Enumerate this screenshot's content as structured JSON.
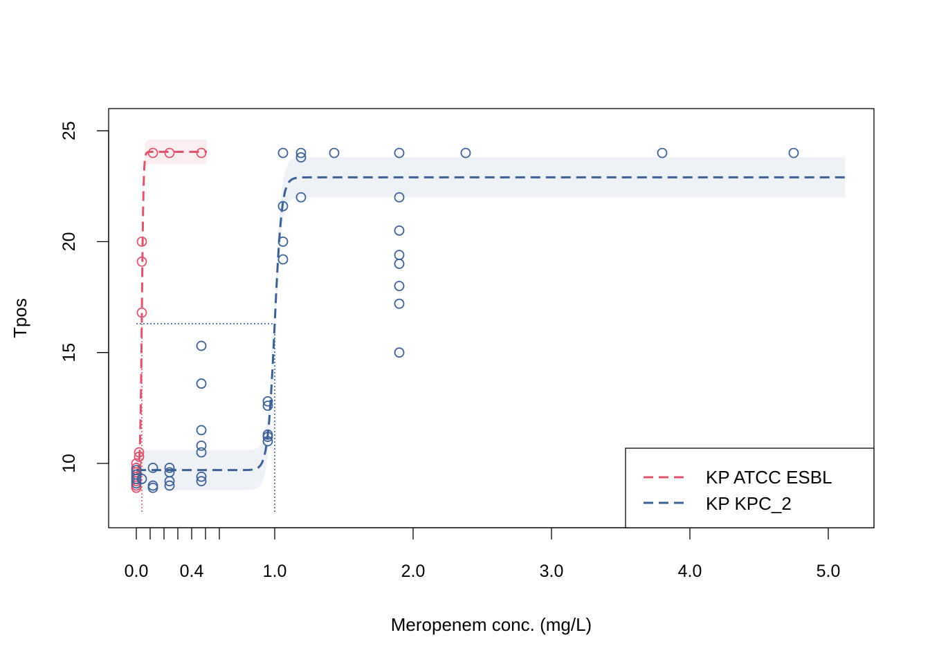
{
  "chart_data": {
    "type": "scatter",
    "title": "",
    "xlabel": "Meropenem conc. (mg/L)",
    "ylabel": "Tpos",
    "xlim": [
      -0.2,
      5.33
    ],
    "ylim": [
      7.1,
      26.0
    ],
    "x_ticks": [
      0.0,
      0.1,
      0.2,
      0.3,
      0.4,
      0.5,
      0.6,
      1.0,
      2.0,
      3.0,
      4.0,
      5.0
    ],
    "x_tick_labels": [
      {
        "value": 0.0,
        "label": "0.0"
      },
      {
        "value": 0.4,
        "label": "0.4"
      },
      {
        "value": 1.0,
        "label": "1.0"
      },
      {
        "value": 2.0,
        "label": "2.0"
      },
      {
        "value": 3.0,
        "label": "3.0"
      },
      {
        "value": 4.0,
        "label": "4.0"
      },
      {
        "value": 5.0,
        "label": "5.0"
      }
    ],
    "y_ticks": [
      {
        "value": 10,
        "label": "10"
      },
      {
        "value": 15,
        "label": "15"
      },
      {
        "value": 20,
        "label": "20"
      },
      {
        "value": 25,
        "label": "25"
      }
    ],
    "legend": {
      "position": "bottom-right",
      "entries": [
        "KP ATCC ESBL",
        "KP KPC_2"
      ]
    },
    "series": [
      {
        "name": "KP ATCC ESBL",
        "color": "#DF536B",
        "band_color": "#FBEEF1",
        "fit": {
          "lower": 9.5,
          "upper": 24.05,
          "midpoint": 0.04,
          "width": 0.006,
          "x_range": [
            0.0,
            0.51
          ],
          "band_halfwidth": 0.55
        },
        "threshold": {
          "x": 0.04,
          "y": 16.3
        },
        "points": [
          {
            "x": 0.0,
            "y": 9.0
          },
          {
            "x": 0.0,
            "y": 9.2
          },
          {
            "x": 0.0,
            "y": 9.4
          },
          {
            "x": 0.0,
            "y": 9.6
          },
          {
            "x": 0.0,
            "y": 9.8
          },
          {
            "x": 0.0,
            "y": 10.0
          },
          {
            "x": 0.0,
            "y": 8.9
          },
          {
            "x": 0.02,
            "y": 10.3
          },
          {
            "x": 0.02,
            "y": 10.5
          },
          {
            "x": 0.04,
            "y": 20.0
          },
          {
            "x": 0.04,
            "y": 19.1
          },
          {
            "x": 0.04,
            "y": 16.8
          },
          {
            "x": 0.12,
            "y": 24.0
          },
          {
            "x": 0.24,
            "y": 24.0
          },
          {
            "x": 0.47,
            "y": 24.0
          }
        ]
      },
      {
        "name": "KP KPC_2",
        "color": "#3A6096",
        "band_color": "#EEF2F7",
        "fit": {
          "lower": 9.7,
          "upper": 22.9,
          "midpoint": 1.0,
          "width": 0.025,
          "x_range": [
            0.0,
            5.12
          ],
          "band_halfwidth": 0.9
        },
        "threshold": {
          "x": 1.0,
          "y": 16.3
        },
        "points": [
          {
            "x": 0.0,
            "y": 9.3
          },
          {
            "x": 0.0,
            "y": 9.5
          },
          {
            "x": 0.0,
            "y": 9.7
          },
          {
            "x": 0.0,
            "y": 9.1
          },
          {
            "x": 0.04,
            "y": 9.3
          },
          {
            "x": 0.12,
            "y": 9.8
          },
          {
            "x": 0.12,
            "y": 9.0
          },
          {
            "x": 0.12,
            "y": 8.9
          },
          {
            "x": 0.24,
            "y": 9.8
          },
          {
            "x": 0.24,
            "y": 9.6
          },
          {
            "x": 0.24,
            "y": 9.2
          },
          {
            "x": 0.24,
            "y": 9.0
          },
          {
            "x": 0.47,
            "y": 15.3
          },
          {
            "x": 0.47,
            "y": 13.6
          },
          {
            "x": 0.47,
            "y": 11.5
          },
          {
            "x": 0.47,
            "y": 10.8
          },
          {
            "x": 0.47,
            "y": 10.5
          },
          {
            "x": 0.47,
            "y": 9.4
          },
          {
            "x": 0.47,
            "y": 9.2
          },
          {
            "x": 0.95,
            "y": 12.8
          },
          {
            "x": 0.95,
            "y": 12.6
          },
          {
            "x": 0.95,
            "y": 11.3
          },
          {
            "x": 0.95,
            "y": 11.2
          },
          {
            "x": 0.95,
            "y": 11.0
          },
          {
            "x": 1.06,
            "y": 24.0
          },
          {
            "x": 1.06,
            "y": 21.6
          },
          {
            "x": 1.06,
            "y": 20.0
          },
          {
            "x": 1.06,
            "y": 19.2
          },
          {
            "x": 1.19,
            "y": 24.0
          },
          {
            "x": 1.19,
            "y": 23.8
          },
          {
            "x": 1.19,
            "y": 22.0
          },
          {
            "x": 1.43,
            "y": 24.0
          },
          {
            "x": 1.9,
            "y": 24.0
          },
          {
            "x": 1.9,
            "y": 22.0
          },
          {
            "x": 1.9,
            "y": 20.5
          },
          {
            "x": 1.9,
            "y": 19.4
          },
          {
            "x": 1.9,
            "y": 19.0
          },
          {
            "x": 1.9,
            "y": 18.0
          },
          {
            "x": 1.9,
            "y": 17.2
          },
          {
            "x": 1.9,
            "y": 15.0
          },
          {
            "x": 2.38,
            "y": 24.0
          },
          {
            "x": 3.8,
            "y": 24.0
          },
          {
            "x": 4.75,
            "y": 24.0
          }
        ]
      }
    ]
  }
}
